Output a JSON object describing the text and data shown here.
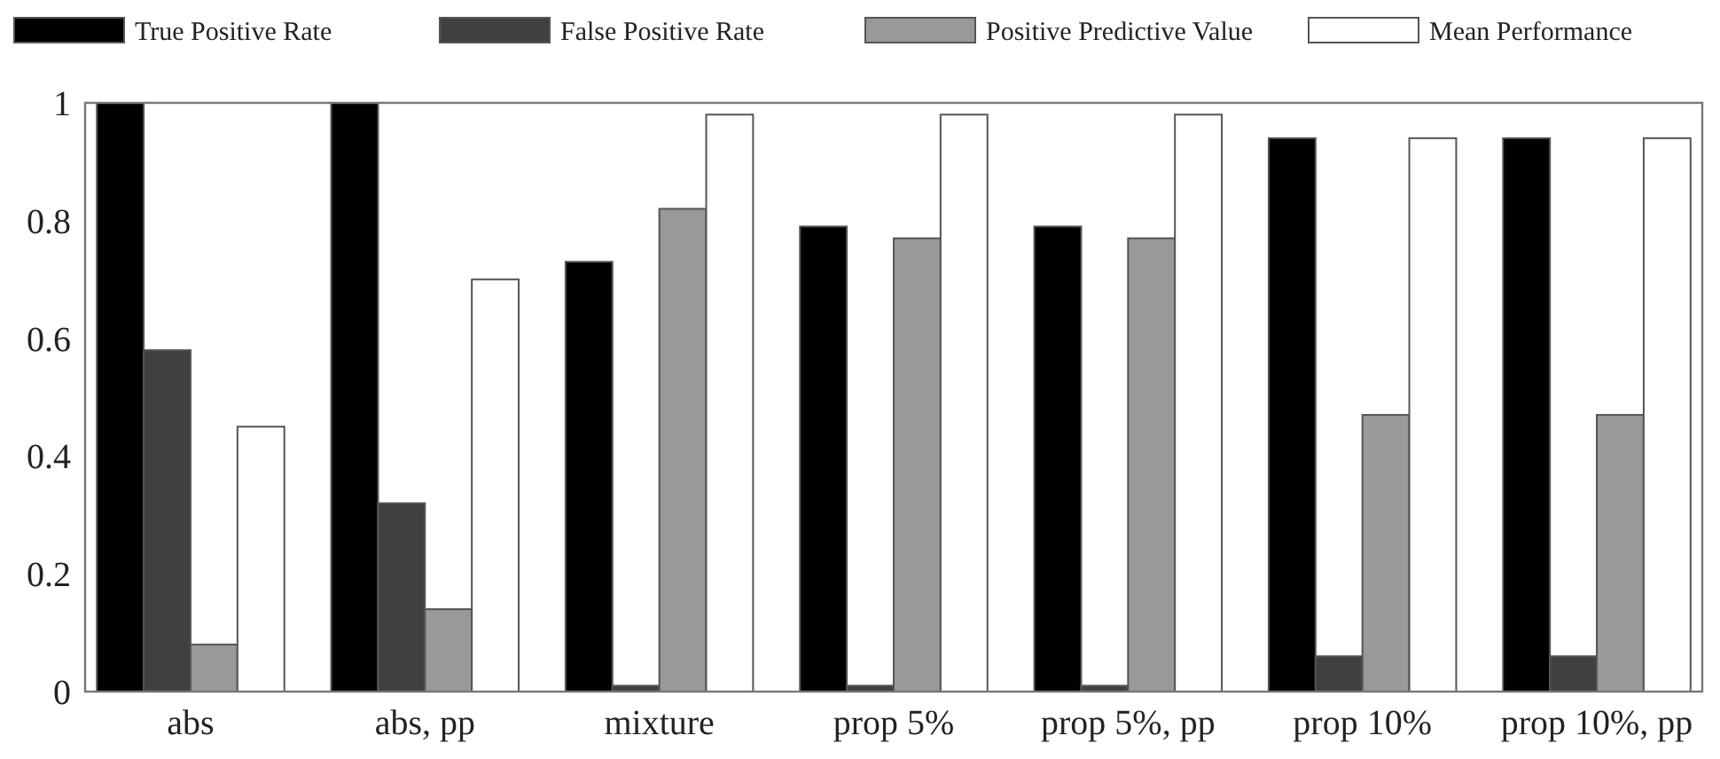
{
  "chart_data": {
    "type": "bar",
    "categories": [
      "abs",
      "abs, pp",
      "mixture",
      "prop 5%",
      "prop 5%, pp",
      "prop 10%",
      "prop 10%, pp"
    ],
    "series": [
      {
        "name": "True Positive Rate",
        "color": "#000000",
        "values": [
          1,
          1,
          0.73,
          0.79,
          0.79,
          0.94,
          0.94
        ]
      },
      {
        "name": "False Positive Rate",
        "color": "#404040",
        "values": [
          0.58,
          0.32,
          0.01,
          0.01,
          0.01,
          0.06,
          0.06
        ]
      },
      {
        "name": "Positive Predictive Value",
        "color": "#999999",
        "values": [
          0.08,
          0.14,
          0.82,
          0.77,
          0.77,
          0.47,
          0.47
        ]
      },
      {
        "name": "Mean Performance",
        "color": "#ffffff",
        "values": [
          0.45,
          0.7,
          0.98,
          0.98,
          0.98,
          0.94,
          0.94
        ]
      }
    ],
    "ylim": [
      0,
      1
    ],
    "yticks": [
      0,
      0.2,
      0.4,
      0.6,
      0.8,
      1
    ],
    "legend": "top",
    "grid": false
  }
}
